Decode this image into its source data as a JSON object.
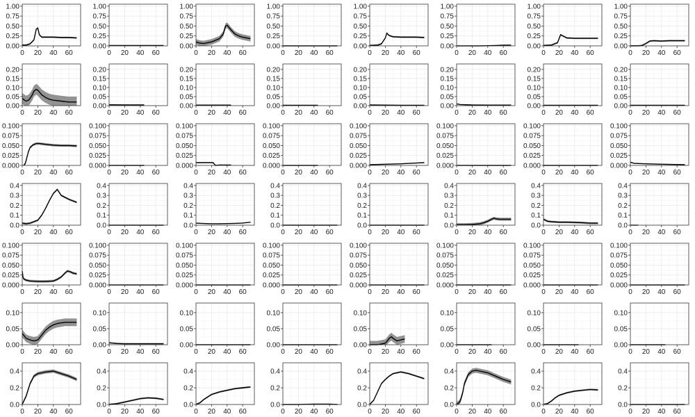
{
  "chart_data": {
    "type": "line",
    "layout": {
      "rows": 7,
      "cols": 8
    },
    "xlim": [
      0,
      75
    ],
    "x_ticks": [
      0,
      20,
      40,
      60
    ],
    "grid": true,
    "legend": "none",
    "colors": {
      "line": "#000000",
      "band": "#808080",
      "grid": "#ebebeb",
      "border": "#333333"
    },
    "rows": [
      {
        "ylim": [
          0,
          1.05
        ],
        "y_ticks": [
          0.0,
          0.25,
          0.5,
          0.75,
          1.0
        ],
        "y_tick_labels": [
          "0.00",
          "0.25",
          "0.50",
          "0.75",
          "1.00"
        ]
      },
      {
        "ylim": [
          0,
          0.23
        ],
        "y_ticks": [
          0.0,
          0.05,
          0.1,
          0.15,
          0.2
        ],
        "y_tick_labels": [
          "0.00",
          "0.05",
          "0.10",
          "0.15",
          "0.20"
        ]
      },
      {
        "ylim": [
          0,
          0.105
        ],
        "y_ticks": [
          0.0,
          0.025,
          0.05,
          0.075,
          0.1
        ],
        "y_tick_labels": [
          "0.000",
          "0.025",
          "0.050",
          "0.075",
          "0.100"
        ]
      },
      {
        "ylim": [
          0,
          0.42
        ],
        "y_ticks": [
          0.0,
          0.1,
          0.2,
          0.3,
          0.4
        ],
        "y_tick_labels": [
          "0.0",
          "0.1",
          "0.2",
          "0.3",
          "0.4"
        ]
      },
      {
        "ylim": [
          0,
          0.105
        ],
        "y_ticks": [
          0.0,
          0.025,
          0.05,
          0.075,
          0.1
        ],
        "y_tick_labels": [
          "0.000",
          "0.025",
          "0.050",
          "0.075",
          "0.100"
        ]
      },
      {
        "ylim": [
          0,
          0.13
        ],
        "y_ticks": [
          0.0,
          0.05,
          0.1
        ],
        "y_tick_labels": [
          "0.00",
          "0.05",
          "0.10"
        ]
      },
      {
        "ylim": [
          0,
          0.5
        ],
        "y_ticks": [
          0.0,
          0.2,
          0.4
        ],
        "y_tick_labels": [
          "0.0",
          "0.2",
          "0.4"
        ]
      }
    ],
    "panels": [
      {
        "x": [
          0,
          5,
          10,
          15,
          18,
          20,
          22,
          25,
          30,
          40,
          50,
          60,
          70
        ],
        "y": [
          0.02,
          0.02,
          0.05,
          0.15,
          0.42,
          0.45,
          0.28,
          0.22,
          0.22,
          0.22,
          0.21,
          0.21,
          0.2
        ],
        "band": 0.02
      },
      {
        "x": [
          0,
          70
        ],
        "y": [
          0.01,
          0.01
        ],
        "band": 0
      },
      {
        "x": [
          0,
          5,
          10,
          20,
          30,
          35,
          38,
          40,
          45,
          50,
          55,
          60,
          70
        ],
        "y": [
          0.1,
          0.07,
          0.06,
          0.1,
          0.18,
          0.3,
          0.5,
          0.52,
          0.4,
          0.3,
          0.25,
          0.22,
          0.18
        ],
        "band": 0.07
      },
      {
        "x": [
          0,
          70
        ],
        "y": [
          0.0,
          0.0
        ],
        "band": 0
      },
      {
        "x": [
          0,
          10,
          15,
          20,
          22,
          25,
          30,
          40,
          50,
          60,
          70
        ],
        "y": [
          0.01,
          0.02,
          0.05,
          0.2,
          0.32,
          0.26,
          0.23,
          0.22,
          0.22,
          0.22,
          0.21
        ],
        "band": 0.02
      },
      {
        "x": [
          0,
          30,
          50,
          60,
          70
        ],
        "y": [
          0.0,
          0.0,
          0.01,
          0.02,
          0.02
        ],
        "band": 0.003
      },
      {
        "x": [
          0,
          10,
          18,
          22,
          25,
          30,
          40,
          50,
          60,
          70
        ],
        "y": [
          0.01,
          0.02,
          0.08,
          0.28,
          0.25,
          0.2,
          0.19,
          0.19,
          0.19,
          0.19
        ],
        "band": 0.02
      },
      {
        "x": [
          0,
          10,
          15,
          20,
          25,
          30,
          40,
          50,
          60,
          70
        ],
        "y": [
          0.0,
          0.0,
          0.01,
          0.06,
          0.12,
          0.13,
          0.12,
          0.13,
          0.13,
          0.13
        ],
        "band": 0.02
      },
      {
        "x": [
          0,
          3,
          5,
          8,
          10,
          13,
          15,
          18,
          20,
          23,
          25,
          30,
          35,
          40,
          50,
          60,
          70
        ],
        "y": [
          0.04,
          0.03,
          0.025,
          0.03,
          0.04,
          0.06,
          0.08,
          0.09,
          0.085,
          0.07,
          0.06,
          0.045,
          0.035,
          0.03,
          0.025,
          0.02,
          0.02
        ],
        "band": 0.03
      },
      {
        "x": [
          0,
          20,
          45
        ],
        "y": [
          0.005,
          0.004,
          0.004
        ],
        "band": 0.002
      },
      {
        "x": [
          0,
          20,
          45
        ],
        "y": [
          0.003,
          0.003,
          0.003
        ],
        "band": 0.001
      },
      {
        "x": [
          0,
          45
        ],
        "y": [
          0.002,
          0.002
        ],
        "band": 0.001
      },
      {
        "x": [
          0,
          20,
          40,
          70
        ],
        "y": [
          0.004,
          0.003,
          0.002,
          0.002
        ],
        "band": 0.001
      },
      {
        "x": [
          0,
          5,
          20,
          40,
          70
        ],
        "y": [
          0.01,
          0.006,
          0.004,
          0.003,
          0.003
        ],
        "band": 0.001
      },
      {
        "x": [
          0,
          70
        ],
        "y": [
          0.002,
          0.002
        ],
        "band": 0.001
      },
      {
        "x": [
          0,
          70
        ],
        "y": [
          0.002,
          0.002
        ],
        "band": 0.001
      },
      {
        "x": [
          2,
          4,
          6,
          8,
          10,
          14,
          18,
          22,
          26,
          30,
          40,
          50,
          60,
          70
        ],
        "y": [
          0.0,
          0.005,
          0.02,
          0.035,
          0.045,
          0.052,
          0.055,
          0.055,
          0.054,
          0.053,
          0.051,
          0.05,
          0.05,
          0.049
        ],
        "band": 0.003
      },
      {
        "x": [
          0,
          45
        ],
        "y": [
          0.0,
          0.0
        ],
        "band": 0
      },
      {
        "x": [
          0,
          10,
          22,
          25,
          30,
          40,
          45
        ],
        "y": [
          0.007,
          0.007,
          0.007,
          0.0,
          0.001,
          0.001,
          0.001
        ],
        "band": 0.001
      },
      {
        "x": [
          0,
          45
        ],
        "y": [
          0.0,
          0.0
        ],
        "band": 0
      },
      {
        "x": [
          0,
          20,
          40,
          60,
          70
        ],
        "y": [
          0.002,
          0.003,
          0.004,
          0.006,
          0.007
        ],
        "band": 0.001
      },
      {
        "x": [
          0,
          70
        ],
        "y": [
          0.0,
          0.0
        ],
        "band": 0
      },
      {
        "x": [
          0,
          70
        ],
        "y": [
          0.0,
          0.0
        ],
        "band": 0
      },
      {
        "x": [
          0,
          5,
          20,
          40,
          70
        ],
        "y": [
          0.008,
          0.005,
          0.004,
          0.003,
          0.002
        ],
        "band": 0.001
      },
      {
        "x": [
          0,
          5,
          10,
          20,
          25,
          30,
          35,
          40,
          45,
          50,
          55,
          60,
          70
        ],
        "y": [
          0.02,
          0.015,
          0.02,
          0.05,
          0.1,
          0.17,
          0.25,
          0.32,
          0.36,
          0.3,
          0.28,
          0.26,
          0.23
        ],
        "band": 0.01
      },
      {
        "x": [
          0,
          70
        ],
        "y": [
          0.0,
          0.0
        ],
        "band": 0
      },
      {
        "x": [
          0,
          10,
          20,
          30,
          40,
          50,
          60,
          70
        ],
        "y": [
          0.02,
          0.017,
          0.015,
          0.015,
          0.016,
          0.018,
          0.022,
          0.03
        ],
        "band": 0.003
      },
      {
        "x": [
          0,
          70
        ],
        "y": [
          0.0,
          0.0
        ],
        "band": 0
      },
      {
        "x": [
          0,
          70
        ],
        "y": [
          0.0,
          0.0
        ],
        "band": 0
      },
      {
        "x": [
          0,
          10,
          20,
          30,
          35,
          40,
          45,
          48,
          50,
          55,
          60,
          70
        ],
        "y": [
          0.005,
          0.005,
          0.008,
          0.015,
          0.025,
          0.04,
          0.06,
          0.07,
          0.065,
          0.06,
          0.06,
          0.06
        ],
        "band": 0.015
      },
      {
        "x": [
          0,
          5,
          10,
          20,
          30,
          40,
          50,
          60,
          70
        ],
        "y": [
          0.06,
          0.04,
          0.035,
          0.03,
          0.03,
          0.028,
          0.025,
          0.02,
          0.02
        ],
        "band": 0.01
      },
      {
        "x": [
          0,
          10
        ],
        "y": [
          0.0,
          0.0
        ],
        "band": 0
      },
      {
        "x": [
          0,
          1,
          2,
          5,
          10,
          20,
          30,
          40,
          45,
          50,
          55,
          58,
          62,
          65,
          70
        ],
        "y": [
          0.035,
          0.02,
          0.015,
          0.012,
          0.01,
          0.009,
          0.009,
          0.01,
          0.014,
          0.02,
          0.03,
          0.035,
          0.033,
          0.03,
          0.028
        ],
        "band": 0.003
      },
      {
        "x": [
          0,
          70
        ],
        "y": [
          0.0,
          0.0
        ],
        "band": 0
      },
      {
        "x": [
          0,
          70
        ],
        "y": [
          0.0,
          0.0
        ],
        "band": 0
      },
      {
        "x": [
          0,
          70
        ],
        "y": [
          0.0,
          0.0
        ],
        "band": 0
      },
      {
        "x": [
          0,
          70
        ],
        "y": [
          0.0,
          0.0
        ],
        "band": 0
      },
      {
        "x": [
          0,
          70
        ],
        "y": [
          0.0,
          0.0
        ],
        "band": 0
      },
      {
        "x": [
          0,
          70
        ],
        "y": [
          0.0,
          0.0
        ],
        "band": 0
      },
      {
        "x": [
          0,
          70
        ],
        "y": [
          0.0,
          0.0
        ],
        "band": 0
      },
      {
        "x": [
          0,
          5,
          10,
          15,
          20,
          25,
          30,
          35,
          40,
          45,
          50,
          55,
          60,
          65,
          70
        ],
        "y": [
          0.035,
          0.02,
          0.015,
          0.012,
          0.015,
          0.03,
          0.045,
          0.055,
          0.062,
          0.066,
          0.068,
          0.07,
          0.07,
          0.07,
          0.07
        ],
        "band": 0.012
      },
      {
        "x": [
          0,
          5,
          10,
          20,
          40,
          60,
          70
        ],
        "y": [
          0.006,
          0.005,
          0.004,
          0.003,
          0.003,
          0.003,
          0.003
        ],
        "band": 0.002
      },
      {
        "x": [
          0,
          70
        ],
        "y": [
          0.0,
          0.0
        ],
        "band": 0
      },
      {
        "x": [
          0,
          70
        ],
        "y": [
          0.0,
          0.0
        ],
        "band": 0
      },
      {
        "x": [
          0,
          10,
          20,
          22,
          25,
          28,
          30,
          35,
          40,
          45
        ],
        "y": [
          0.0,
          0.0,
          0.005,
          0.01,
          0.02,
          0.025,
          0.02,
          0.012,
          0.015,
          0.018
        ],
        "band": 0.012
      },
      {
        "x": [
          0,
          45
        ],
        "y": [
          0.0,
          0.0
        ],
        "band": 0
      },
      {
        "x": [
          0,
          45
        ],
        "y": [
          0.0,
          0.0
        ],
        "band": 0
      },
      {
        "x": [
          0,
          45
        ],
        "y": [
          0.0,
          0.0
        ],
        "band": 0
      },
      {
        "x": [
          0,
          5,
          10,
          15,
          20,
          30,
          40,
          50,
          60,
          70
        ],
        "y": [
          0.0,
          0.1,
          0.25,
          0.34,
          0.37,
          0.39,
          0.4,
          0.37,
          0.34,
          0.3
        ],
        "band": 0.02
      },
      {
        "x": [
          0,
          10,
          20,
          30,
          40,
          50,
          60,
          70
        ],
        "y": [
          0.0,
          0.01,
          0.03,
          0.05,
          0.07,
          0.08,
          0.075,
          0.06
        ],
        "band": 0.01
      },
      {
        "x": [
          0,
          5,
          10,
          15,
          20,
          30,
          40,
          50,
          60,
          70
        ],
        "y": [
          0.0,
          0.02,
          0.06,
          0.09,
          0.12,
          0.15,
          0.17,
          0.19,
          0.2,
          0.21
        ],
        "band": 0.01
      },
      {
        "x": [
          0,
          20,
          40,
          60,
          70
        ],
        "y": [
          0.0,
          0.0,
          0.005,
          0.005,
          0.0
        ],
        "band": 0.002
      },
      {
        "x": [
          0,
          5,
          10,
          15,
          20,
          25,
          30,
          40,
          50,
          60,
          70
        ],
        "y": [
          0.0,
          0.05,
          0.15,
          0.25,
          0.3,
          0.34,
          0.37,
          0.39,
          0.37,
          0.34,
          0.31
        ],
        "band": 0.01
      },
      {
        "x": [
          0,
          3,
          5,
          8,
          10,
          15,
          20,
          25,
          30,
          40,
          50,
          60,
          70
        ],
        "y": [
          0.0,
          0.02,
          0.05,
          0.15,
          0.25,
          0.36,
          0.4,
          0.41,
          0.4,
          0.38,
          0.34,
          0.3,
          0.27
        ],
        "band": 0.03
      },
      {
        "x": [
          0,
          5,
          10,
          15,
          20,
          30,
          40,
          50,
          60,
          70
        ],
        "y": [
          0.0,
          0.01,
          0.04,
          0.08,
          0.11,
          0.14,
          0.16,
          0.17,
          0.18,
          0.175
        ],
        "band": 0.01
      },
      {
        "x": [
          0,
          70
        ],
        "y": [
          0.0,
          0.0
        ],
        "band": 0
      }
    ]
  }
}
